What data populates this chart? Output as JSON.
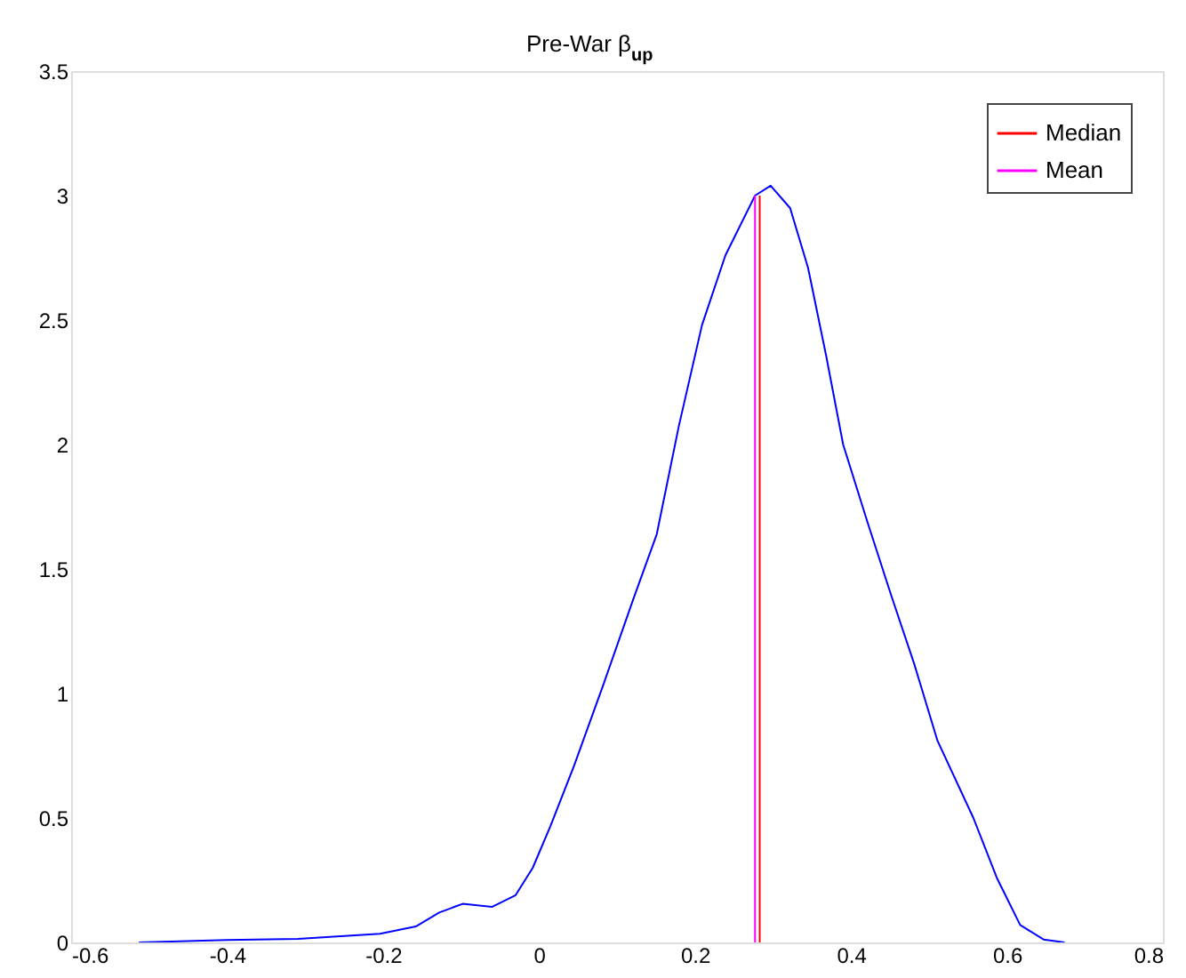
{
  "chart_data": {
    "type": "line",
    "title": "Pre-War β$_{up}$",
    "xlim": [
      -0.6,
      0.8
    ],
    "xticks": [
      -0.6,
      -0.4,
      -0.2,
      0,
      0.2,
      0.4,
      0.6,
      0.8
    ],
    "ylim": [
      0,
      3.5
    ],
    "yticks": [
      0,
      0.5,
      1,
      1.5,
      2,
      2.5,
      3,
      3.5
    ],
    "grid": false,
    "legend": "top right",
    "marker": "none",
    "line_style": "solid",
    "series": [
      {
        "color": "#0000ff",
        "x": [
          -0.513,
          -0.4,
          -0.309,
          -0.204,
          -0.158,
          -0.128,
          -0.098,
          -0.06,
          -0.03,
          -0.008,
          0.015,
          0.045,
          0.083,
          0.121,
          0.151,
          0.179,
          0.209,
          0.239,
          0.277,
          0.297,
          0.322,
          0.345,
          0.368,
          0.39,
          0.421,
          0.451,
          0.481,
          0.511,
          0.557,
          0.587,
          0.617,
          0.647,
          0.674
        ],
        "values": [
          0,
          0.01,
          0.014,
          0.035,
          0.064,
          0.12,
          0.155,
          0.143,
          0.19,
          0.3,
          0.47,
          0.71,
          1.04,
          1.38,
          1.64,
          2.07,
          2.48,
          2.76,
          3.0,
          3.04,
          2.95,
          2.71,
          2.36,
          2.0,
          1.69,
          1.4,
          1.12,
          0.81,
          0.5,
          0.26,
          0.07,
          0.012,
          0
        ]
      },
      {
        "name": "Median",
        "color": "#ff0000",
        "x": [
          0.283,
          0.283
        ],
        "values": [
          0,
          3.0
        ]
      },
      {
        "name": "Mean",
        "color": "#ff00ff",
        "x": [
          0.277,
          0.277
        ],
        "values": [
          0,
          3.0
        ]
      }
    ]
  }
}
